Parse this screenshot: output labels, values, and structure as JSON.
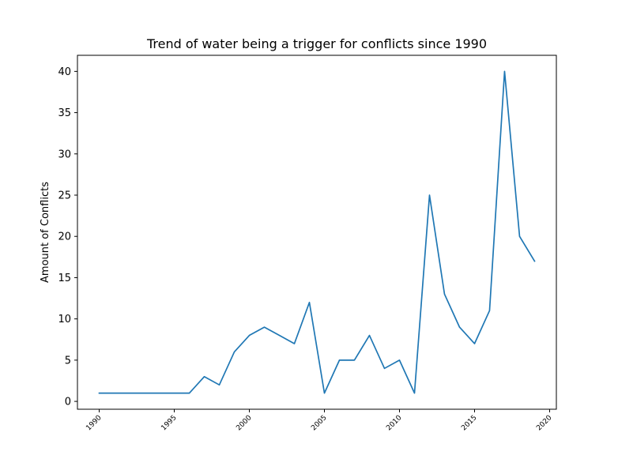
{
  "chart_data": {
    "type": "line",
    "title": "Trend of water being a trigger for conflicts since 1990",
    "xlabel": "",
    "ylabel": "Amount of Conflicts",
    "xlim": [
      1988.55,
      2020.45
    ],
    "ylim": [
      -0.95,
      41.95
    ],
    "x_ticks": [
      1990,
      1995,
      2000,
      2005,
      2010,
      2015,
      2020
    ],
    "y_ticks": [
      0,
      5,
      10,
      15,
      20,
      25,
      30,
      35,
      40
    ],
    "grid": false,
    "series": [
      {
        "color": "#1f77b4",
        "x": [
          1990,
          1991,
          1992,
          1993,
          1994,
          1995,
          1996,
          1997,
          1998,
          1999,
          2000,
          2001,
          2002,
          2003,
          2004,
          2005,
          2006,
          2007,
          2008,
          2009,
          2010,
          2011,
          2012,
          2013,
          2014,
          2015,
          2016,
          2017,
          2018,
          2019
        ],
        "y": [
          1,
          1,
          1,
          1,
          1,
          1,
          1,
          3,
          2,
          6,
          8,
          9,
          8,
          7,
          12,
          1,
          5,
          5,
          8,
          4,
          5,
          1,
          25,
          13,
          9,
          7,
          11,
          40,
          20,
          17
        ]
      }
    ]
  }
}
